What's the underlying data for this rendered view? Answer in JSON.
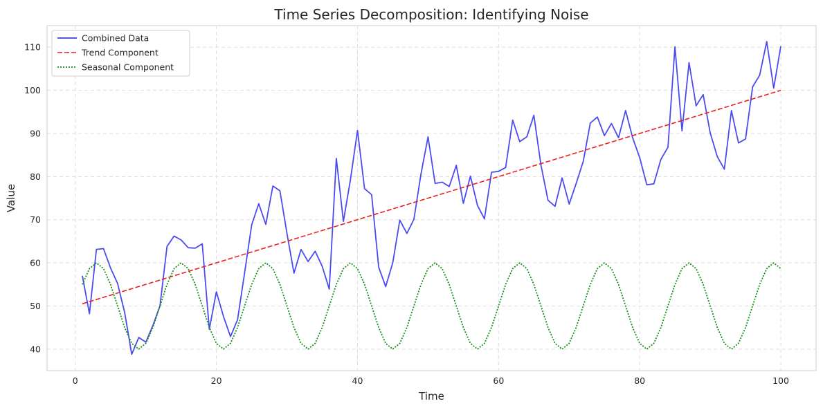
{
  "chart_data": {
    "type": "line",
    "title": "Time Series Decomposition: Identifying Noise",
    "xlabel": "Time",
    "ylabel": "Value",
    "xlim": [
      -4,
      105
    ],
    "ylim": [
      35,
      115
    ],
    "xticks": [
      0,
      20,
      40,
      60,
      80,
      100
    ],
    "yticks": [
      40,
      50,
      60,
      70,
      80,
      90,
      100,
      110
    ],
    "grid": true,
    "legend_position": "top-left",
    "series": [
      {
        "name": "Combined Data",
        "color": "#3b3bf0",
        "style": "solid",
        "x": [
          1,
          2,
          3,
          4,
          5,
          6,
          7,
          8,
          9,
          10,
          11,
          12,
          13,
          14,
          15,
          16,
          17,
          18,
          19,
          20,
          21,
          22,
          23,
          24,
          25,
          26,
          27,
          28,
          29,
          30,
          31,
          32,
          33,
          34,
          35,
          36,
          37,
          38,
          39,
          40,
          41,
          42,
          43,
          44,
          45,
          46,
          47,
          48,
          49,
          50,
          51,
          52,
          53,
          54,
          55,
          56,
          57,
          58,
          59,
          60,
          61,
          62,
          63,
          64,
          65,
          66,
          67,
          68,
          69,
          70,
          71,
          72,
          73,
          74,
          75,
          76,
          77,
          78,
          79,
          80,
          81,
          82,
          83,
          84,
          85,
          86,
          87,
          88,
          89,
          90,
          91,
          92,
          93,
          94,
          95,
          96,
          97,
          98,
          99,
          100
        ],
        "y": [
          57,
          48.2,
          63.1,
          63.3,
          58.8,
          55.2,
          48.5,
          38.8,
          42.7,
          41.6,
          45.5,
          50,
          63.8,
          66.2,
          65.3,
          63.5,
          63.4,
          64.4,
          44.6,
          53.3,
          47.6,
          42.9,
          46.8,
          57.7,
          68.8,
          73.7,
          68.9,
          77.8,
          76.7,
          66.8,
          57.6,
          63.1,
          60.3,
          62.7,
          59.2,
          53.9,
          84.2,
          69.6,
          79.3,
          90.7,
          77.2,
          75.8,
          59,
          54.5,
          60,
          69.9,
          66.8,
          70.1,
          80.6,
          89.2,
          78.4,
          78.7,
          77.7,
          82.6,
          73.8,
          80.1,
          73.3,
          70.2,
          81,
          81.2,
          82.1,
          93.1,
          88.1,
          89.2,
          94.2,
          82.7,
          74.5,
          73.1,
          79.7,
          73.6,
          78.4,
          83.5,
          92.4,
          93.8,
          89.5,
          92.3,
          89,
          95.3,
          89,
          84.4,
          78.1,
          78.3,
          84,
          86.8,
          110.1,
          90.6,
          106.4,
          96.4,
          99,
          90.1,
          84.6,
          81.7,
          95.3,
          87.8,
          88.7,
          100.8,
          103.5,
          111.3,
          100.5,
          110.2
        ]
      },
      {
        "name": "Trend Component",
        "color": "#e8211d",
        "style": "dashed",
        "x": [
          1,
          100
        ],
        "y": [
          50.5,
          100
        ]
      },
      {
        "name": "Seasonal Component",
        "color": "#138f13",
        "style": "dotted",
        "function": "50 + 10*sin(2*pi*x/12)",
        "x": [
          1,
          2,
          3,
          4,
          5,
          6,
          7,
          8,
          9,
          10,
          11,
          12,
          13,
          14,
          15,
          16,
          17,
          18,
          19,
          20,
          21,
          22,
          23,
          24,
          25,
          26,
          27,
          28,
          29,
          30,
          31,
          32,
          33,
          34,
          35,
          36,
          37,
          38,
          39,
          40,
          41,
          42,
          43,
          44,
          45,
          46,
          47,
          48,
          49,
          50,
          51,
          52,
          53,
          54,
          55,
          56,
          57,
          58,
          59,
          60,
          61,
          62,
          63,
          64,
          65,
          66,
          67,
          68,
          69,
          70,
          71,
          72,
          73,
          74,
          75,
          76,
          77,
          78,
          79,
          80,
          81,
          82,
          83,
          84,
          85,
          86,
          87,
          88,
          89,
          90,
          91,
          92,
          93,
          94,
          95,
          96,
          97,
          98,
          99,
          100
        ],
        "y": [
          55,
          58.66,
          60,
          58.66,
          55,
          50,
          45,
          41.34,
          40,
          41.34,
          45,
          50,
          55,
          58.66,
          60,
          58.66,
          55,
          50,
          45,
          41.34,
          40,
          41.34,
          45,
          50,
          55,
          58.66,
          60,
          58.66,
          55,
          50,
          45,
          41.34,
          40,
          41.34,
          45,
          50,
          55,
          58.66,
          60,
          58.66,
          55,
          50,
          45,
          41.34,
          40,
          41.34,
          45,
          50,
          55,
          58.66,
          60,
          58.66,
          55,
          50,
          45,
          41.34,
          40,
          41.34,
          45,
          50,
          55,
          58.66,
          60,
          58.66,
          55,
          50,
          45,
          41.34,
          40,
          41.34,
          45,
          50,
          55,
          58.66,
          60,
          58.66,
          55,
          50,
          45,
          41.34,
          40,
          41.34,
          45,
          50,
          55,
          58.66,
          60,
          58.66,
          55,
          50,
          45,
          41.34,
          40,
          41.34,
          45,
          50,
          55,
          58.66,
          60,
          58.66
        ]
      }
    ]
  }
}
